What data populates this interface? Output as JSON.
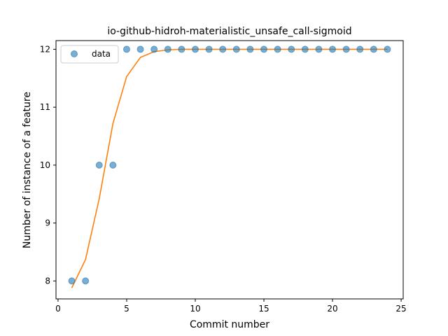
{
  "chart_data": {
    "type": "scatter",
    "title": "io-github-hidroh-materialistic_unsafe_call-sigmoid",
    "xlabel": "Commit number",
    "ylabel": "Number of instance of a feature",
    "xlim": [
      -0.15,
      25.15
    ],
    "ylim": [
      7.69,
      12.15
    ],
    "xticks": [
      0,
      5,
      10,
      15,
      20,
      25
    ],
    "yticks": [
      8,
      9,
      10,
      11,
      12
    ],
    "grid": false,
    "legend_position": "top-left",
    "series": [
      {
        "name": "data",
        "kind": "scatter",
        "color": "#1f77b4",
        "x": [
          1,
          2,
          3,
          4,
          5,
          6,
          7,
          8,
          9,
          10,
          11,
          12,
          13,
          14,
          15,
          16,
          17,
          18,
          19,
          20,
          21,
          22,
          23,
          24
        ],
        "y": [
          8,
          8,
          10,
          10,
          12,
          12,
          12,
          12,
          12,
          12,
          12,
          12,
          12,
          12,
          12,
          12,
          12,
          12,
          12,
          12,
          12,
          12,
          12,
          12
        ]
      },
      {
        "kind": "line",
        "color": "#ff7f0e",
        "x": [
          1,
          2,
          3,
          4,
          5,
          6,
          7,
          8,
          9,
          10,
          11,
          12,
          13,
          14,
          15,
          16,
          17,
          18,
          19,
          20,
          21,
          22,
          23,
          24
        ],
        "y": [
          7.88,
          8.37,
          9.42,
          10.72,
          11.53,
          11.86,
          11.96,
          11.99,
          12.0,
          12.0,
          12.0,
          12.0,
          12.0,
          12.0,
          12.0,
          12.0,
          12.0,
          12.0,
          12.0,
          12.0,
          12.0,
          12.0,
          12.0,
          12.0
        ]
      }
    ]
  }
}
